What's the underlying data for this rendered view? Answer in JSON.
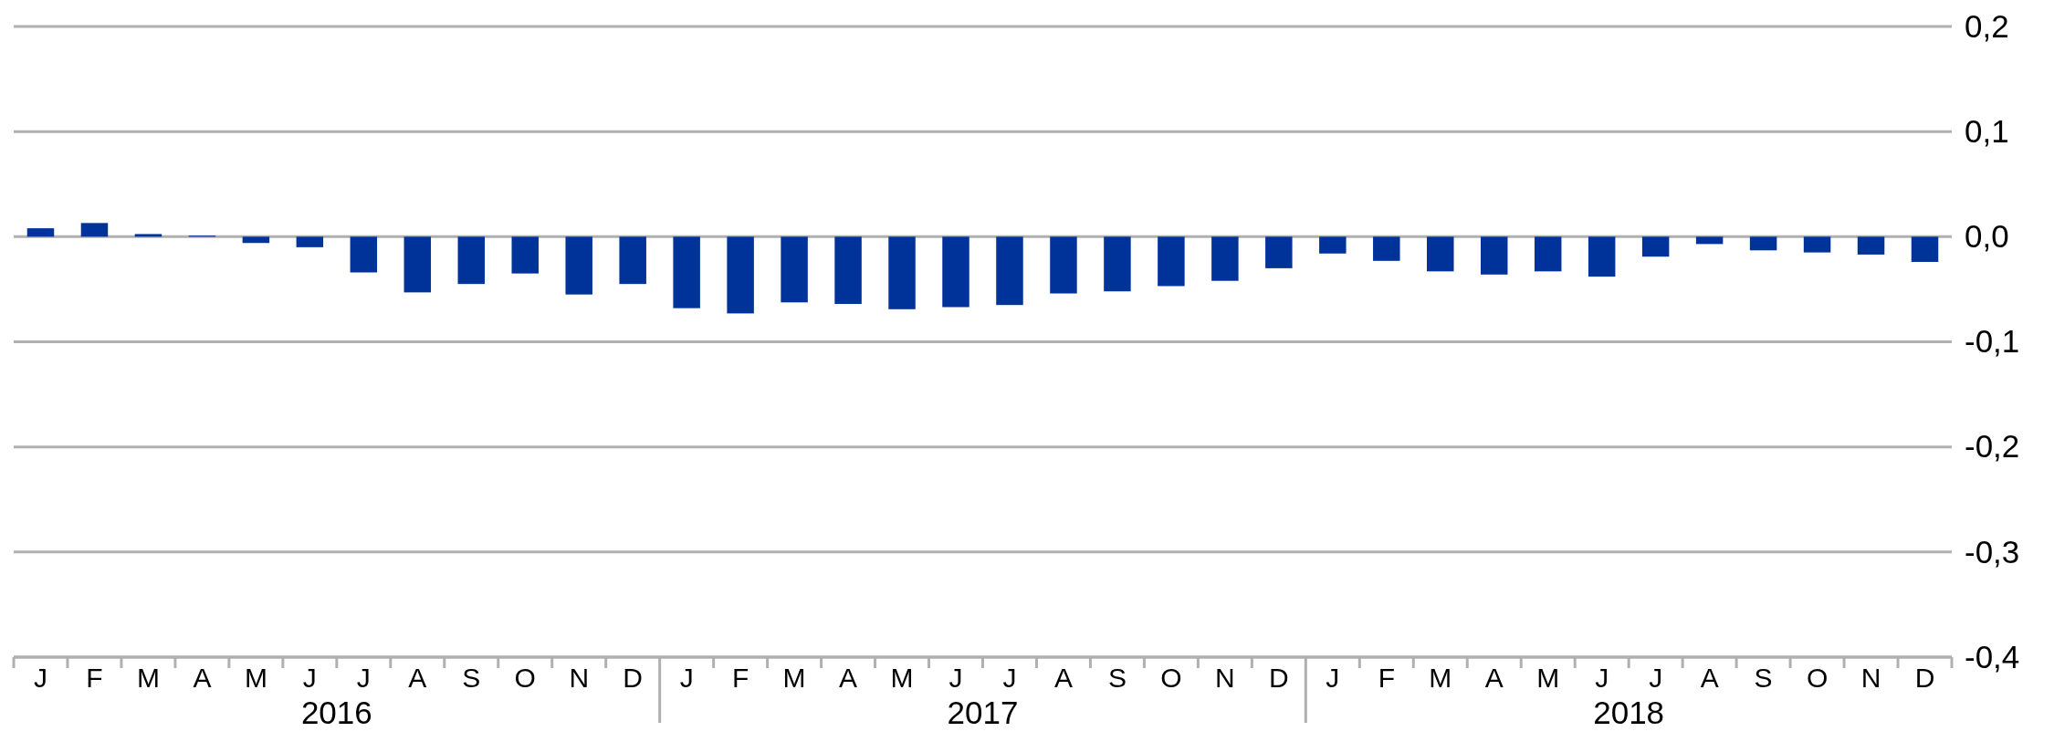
{
  "chart_data": {
    "type": "bar",
    "categories": [
      "J",
      "F",
      "M",
      "A",
      "M",
      "J",
      "J",
      "A",
      "S",
      "O",
      "N",
      "D",
      "J",
      "F",
      "M",
      "A",
      "M",
      "J",
      "J",
      "A",
      "S",
      "O",
      "N",
      "D",
      "J",
      "F",
      "M",
      "A",
      "M",
      "J",
      "J",
      "A",
      "S",
      "O",
      "N",
      "D"
    ],
    "values": [
      0.008,
      0.013,
      0.0025,
      0.001,
      -0.006,
      -0.01,
      -0.034,
      -0.053,
      -0.045,
      -0.035,
      -0.055,
      -0.045,
      -0.068,
      -0.073,
      -0.0625,
      -0.064,
      -0.069,
      -0.067,
      -0.065,
      -0.054,
      -0.052,
      -0.047,
      -0.042,
      -0.03,
      -0.016,
      -0.023,
      -0.033,
      -0.036,
      -0.033,
      -0.038,
      -0.019,
      -0.007,
      -0.013,
      -0.015,
      -0.017,
      -0.024
    ],
    "color": "#003399",
    "ylim": [
      -0.4,
      0.2
    ],
    "yticks": [
      {
        "value": -0.4,
        "label": "-0,4"
      },
      {
        "value": -0.3,
        "label": "-0,3"
      },
      {
        "value": -0.2,
        "label": "-0,2"
      },
      {
        "value": -0.1,
        "label": "-0,1"
      },
      {
        "value": 0,
        "label": "0,0"
      },
      {
        "value": 0.1,
        "label": "0,1"
      },
      {
        "value": 0.2,
        "label": "0,2"
      }
    ],
    "grid": "y",
    "annotations": [
      "2016",
      "2017",
      "2018"
    ]
  }
}
